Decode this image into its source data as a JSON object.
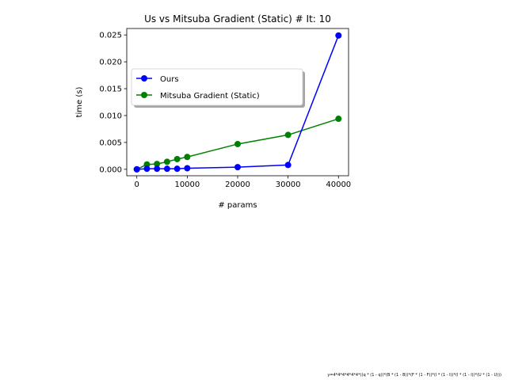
{
  "chart_data": {
    "type": "line",
    "title": "Us vs Mitsuba Gradient (Static) # It: 10",
    "xlabel": "# params",
    "ylabel": "time (s)",
    "xlim": [
      -2000,
      42000
    ],
    "ylim": [
      -0.0012,
      0.0262
    ],
    "xticks": [
      0,
      10000,
      20000,
      30000,
      40000
    ],
    "xtick_labels": [
      "0",
      "10000",
      "20000",
      "30000",
      "40000"
    ],
    "yticks": [
      0.0,
      0.005,
      0.01,
      0.015,
      0.02,
      0.025
    ],
    "ytick_labels": [
      "0.000",
      "0.005",
      "0.010",
      "0.015",
      "0.020",
      "0.025"
    ],
    "grid": false,
    "legend_position": "upper-left",
    "series": [
      {
        "name": "Ours",
        "color": "#0000ff",
        "marker": "circle",
        "x": [
          0,
          2000,
          4000,
          6000,
          8000,
          10000,
          20000,
          30000,
          40000
        ],
        "y": [
          0.0,
          0.0001,
          0.0001,
          0.0001,
          0.0001,
          0.0002,
          0.0004,
          0.0008,
          0.0249
        ]
      },
      {
        "name": "Mitsuba Gradient (Static)",
        "color": "#008000",
        "marker": "circle",
        "x": [
          0,
          2000,
          4000,
          6000,
          8000,
          10000,
          20000,
          30000,
          40000
        ],
        "y": [
          0.0,
          0.0009,
          0.001,
          0.0014,
          0.0019,
          0.0023,
          0.0047,
          0.0064,
          0.0094
        ]
      }
    ],
    "footnote": "y=4*4*4*4*4*4*((q * (1 - q))*(B * (1 - B))*(F * (1 - F))*(I * (1 - I))*(I * (1 - I))*(U * (1 - U)))"
  }
}
